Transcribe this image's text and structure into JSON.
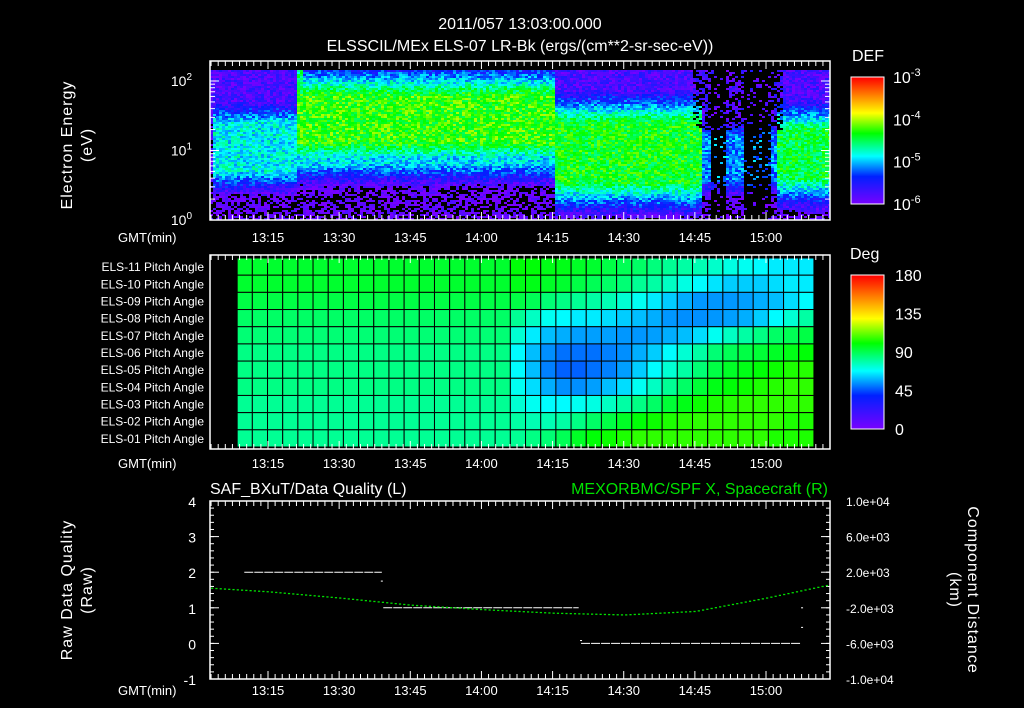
{
  "header": {
    "timestamp": "2011/057 13:03:00.000",
    "title": "ELSSCIL/MEx ELS-07 LR-Bk  (ergs/(cm**2-sr-sec-eV))"
  },
  "chart_data": [
    {
      "type": "heatmap",
      "title": "ELSSCIL/MEx ELS-07 LR-Bk  (ergs/(cm**2-sr-sec-eV))",
      "xlabel": "GMT(min)",
      "ylabel": "Electron Energy",
      "ylabel_units": "(eV)",
      "yscale": "log",
      "ylim_eV": [
        1,
        190
      ],
      "xlim_minutes_after_13_00": [
        2.8,
        133.5
      ],
      "yticks": [
        {
          "base": "10",
          "exp": "0",
          "value": 1
        },
        {
          "base": "10",
          "exp": "1",
          "value": 10
        },
        {
          "base": "10",
          "exp": "2",
          "value": 100
        }
      ],
      "xticks": [
        "13:15",
        "13:30",
        "13:45",
        "14:00",
        "14:15",
        "14:30",
        "14:45",
        "15:00"
      ],
      "xtick_minutes": [
        15,
        30,
        45,
        60,
        75,
        90,
        105,
        120
      ],
      "colorbar": {
        "label": "DEF",
        "log_range": [
          -6,
          -3
        ],
        "ticks": [
          {
            "base": "10",
            "exp": "-3"
          },
          {
            "base": "10",
            "exp": "-4"
          },
          {
            "base": "10",
            "exp": "-5"
          },
          {
            "base": "10",
            "exp": "-6"
          }
        ]
      },
      "background_log_def": -5.85,
      "bands": [
        {
          "t0": 3,
          "t1": 21,
          "e_lo": 5,
          "e_hi": 25,
          "log_def": -4.85
        },
        {
          "t0": 20.5,
          "t1": 22,
          "e_lo": 10,
          "e_hi": 150,
          "log_def": -4.6
        },
        {
          "t0": 21,
          "t1": 75,
          "e_lo": 13,
          "e_hi": 60,
          "log_def": -4.25
        },
        {
          "t0": 21,
          "t1": 75,
          "e_lo": 6.5,
          "e_hi": 13,
          "log_def": -4.9
        },
        {
          "t0": 75,
          "t1": 106,
          "e_lo": 3.5,
          "e_hi": 25,
          "log_def": -4.35
        },
        {
          "t0": 106,
          "t1": 122,
          "e_lo": 4,
          "e_hi": 15,
          "log_def": -5.1
        },
        {
          "t0": 122,
          "t1": 133.5,
          "e_lo": 4,
          "e_hi": 20,
          "log_def": -4.45
        }
      ],
      "gaps": [
        {
          "t0": 108,
          "t1": 111
        },
        {
          "t0": 115,
          "t1": 121
        }
      ]
    },
    {
      "type": "heatmap",
      "xlabel": "GMT(min)",
      "xticks": [
        "13:15",
        "13:30",
        "13:45",
        "14:00",
        "14:15",
        "14:30",
        "14:45",
        "15:00"
      ],
      "xtick_minutes": [
        15,
        30,
        45,
        60,
        75,
        90,
        105,
        120
      ],
      "first_column_minute": 8.5,
      "column_width_minutes": 3.2,
      "colorbar": {
        "label": "Deg",
        "range": [
          0,
          180
        ],
        "ticks": [
          "180",
          "135",
          "90",
          "45",
          "0"
        ]
      },
      "rows": [
        "ELS-11 Pitch Angle",
        "ELS-10 Pitch Angle",
        "ELS-09 Pitch Angle",
        "ELS-08 Pitch Angle",
        "ELS-07 Pitch Angle",
        "ELS-06 Pitch Angle",
        "ELS-05 Pitch Angle",
        "ELS-04 Pitch Angle",
        "ELS-03 Pitch Angle",
        "ELS-02 Pitch Angle",
        "ELS-01 Pitch Angle"
      ],
      "values": [
        [
          95,
          95,
          95,
          95,
          95,
          95,
          95,
          95,
          95,
          95,
          95,
          95,
          95,
          95,
          95,
          95,
          95,
          95,
          100,
          100,
          98,
          98,
          96,
          95,
          92,
          90,
          88,
          85,
          82,
          80,
          78,
          75,
          72,
          70,
          68,
          66,
          66,
          66
        ],
        [
          95,
          95,
          95,
          95,
          95,
          95,
          95,
          95,
          95,
          95,
          95,
          95,
          95,
          95,
          95,
          95,
          95,
          95,
          98,
          98,
          96,
          95,
          92,
          90,
          88,
          86,
          82,
          80,
          76,
          72,
          68,
          65,
          62,
          62,
          62,
          64,
          66,
          66
        ],
        [
          92,
          92,
          92,
          92,
          92,
          92,
          92,
          92,
          92,
          92,
          92,
          92,
          92,
          92,
          92,
          92,
          92,
          92,
          92,
          90,
          86,
          84,
          82,
          80,
          78,
          74,
          70,
          66,
          62,
          58,
          55,
          55,
          55,
          56,
          58,
          60,
          64,
          68
        ],
        [
          88,
          88,
          88,
          88,
          88,
          88,
          88,
          88,
          88,
          88,
          88,
          88,
          88,
          88,
          88,
          88,
          88,
          88,
          82,
          76,
          70,
          68,
          66,
          66,
          64,
          62,
          60,
          58,
          55,
          54,
          54,
          55,
          56,
          58,
          62,
          68,
          74,
          80
        ],
        [
          86,
          86,
          86,
          86,
          86,
          86,
          86,
          86,
          86,
          86,
          86,
          86,
          86,
          86,
          86,
          86,
          86,
          86,
          74,
          66,
          60,
          58,
          56,
          56,
          56,
          55,
          55,
          56,
          58,
          60,
          64,
          70,
          76,
          80,
          84,
          88,
          90,
          92
        ],
        [
          84,
          84,
          84,
          84,
          84,
          84,
          84,
          84,
          84,
          84,
          84,
          84,
          84,
          84,
          84,
          84,
          84,
          84,
          68,
          60,
          54,
          50,
          50,
          50,
          52,
          54,
          58,
          62,
          68,
          74,
          80,
          86,
          90,
          92,
          94,
          96,
          98,
          100
        ],
        [
          84,
          84,
          84,
          84,
          84,
          84,
          84,
          84,
          84,
          84,
          84,
          84,
          84,
          84,
          84,
          84,
          84,
          84,
          68,
          60,
          52,
          48,
          48,
          50,
          52,
          56,
          62,
          68,
          74,
          80,
          86,
          92,
          96,
          98,
          100,
          102,
          104,
          105
        ],
        [
          84,
          84,
          84,
          84,
          84,
          84,
          84,
          84,
          84,
          84,
          84,
          84,
          84,
          84,
          84,
          84,
          84,
          84,
          70,
          64,
          58,
          54,
          54,
          56,
          60,
          64,
          70,
          76,
          82,
          88,
          94,
          98,
          100,
          102,
          104,
          105,
          106,
          106
        ],
        [
          82,
          82,
          82,
          82,
          82,
          82,
          82,
          82,
          82,
          82,
          82,
          82,
          82,
          82,
          82,
          82,
          82,
          82,
          74,
          70,
          68,
          68,
          70,
          72,
          76,
          80,
          84,
          88,
          94,
          98,
          102,
          104,
          105,
          106,
          106,
          106,
          106,
          106
        ],
        [
          82,
          82,
          82,
          82,
          82,
          82,
          82,
          82,
          82,
          82,
          82,
          82,
          82,
          82,
          82,
          82,
          82,
          82,
          80,
          78,
          78,
          80,
          84,
          88,
          92,
          96,
          100,
          102,
          104,
          105,
          106,
          106,
          106,
          106,
          106,
          106,
          104,
          104
        ],
        [
          82,
          82,
          82,
          82,
          82,
          82,
          82,
          82,
          82,
          82,
          82,
          82,
          82,
          82,
          82,
          82,
          82,
          82,
          82,
          84,
          86,
          90,
          96,
          100,
          102,
          104,
          106,
          106,
          106,
          106,
          106,
          106,
          106,
          106,
          106,
          104,
          104,
          104
        ]
      ]
    },
    {
      "type": "line",
      "xlabel": "GMT(min)",
      "xticks": [
        "13:15",
        "13:30",
        "13:45",
        "14:00",
        "14:15",
        "14:30",
        "14:45",
        "15:00"
      ],
      "xtick_minutes": [
        15,
        30,
        45,
        60,
        75,
        90,
        105,
        120
      ],
      "left_title": "SAF_BXuT/Data Quality (L)",
      "right_title": "MEXORBMC/SPF X, Spacecraft (R)",
      "left_ylabel": "Raw Data Quality",
      "left_ylabel_units": "(Raw)",
      "right_ylabel": "Component Distance",
      "right_ylabel_units": "(km)",
      "left_ylim": [
        -1,
        4
      ],
      "left_yticks": [
        "4",
        "3",
        "2",
        "1",
        "0",
        "-1"
      ],
      "right_ylim": [
        -10000,
        10000
      ],
      "right_yticks": [
        "1.0e+04",
        "6.0e+03",
        "2.0e+03",
        "-2.0e+03",
        "-6.0e+03",
        "-1.0e+04"
      ],
      "quality_segments": [
        {
          "t0": 10,
          "t1": 39,
          "value": 2
        },
        {
          "t0": 39.3,
          "t1": 80.5,
          "value": 1
        },
        {
          "t0": 81,
          "t1": 127.3,
          "value": 0
        }
      ],
      "quality_points": [
        {
          "t": 39,
          "value": 1.75
        },
        {
          "t": 81,
          "value": 0.08
        },
        {
          "t": 127.6,
          "value": 1
        },
        {
          "t": 127.6,
          "value": 0.45
        }
      ],
      "spacecraft_x_km": {
        "t": [
          3,
          15,
          30,
          45,
          60,
          75,
          90,
          105,
          120,
          133.5
        ],
        "values": [
          200,
          -200,
          -900,
          -1700,
          -2200,
          -2600,
          -2800,
          -2400,
          -900,
          600
        ]
      },
      "series_colors": {
        "quality": "#ffffff",
        "spacecraft": "#00e000"
      }
    }
  ]
}
